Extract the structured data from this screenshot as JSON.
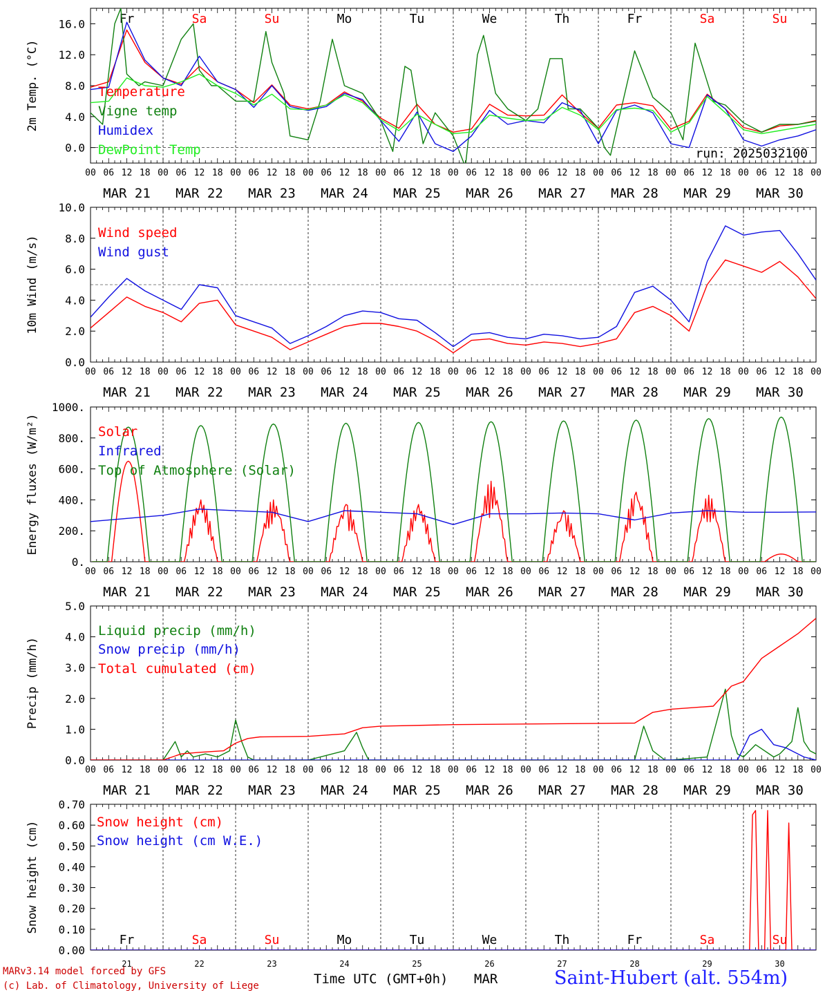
{
  "footer": {
    "credit_line1": "MARv3.14 model forced by GFS",
    "credit_line2": "(c) Lab. of Climatology, University of Liege",
    "xaxis_title": "Time UTC (GMT+0h)",
    "month": "MAR",
    "station": "Saint-Hubert (alt. 554m)"
  },
  "colors": {
    "red": "#ff0000",
    "green": "#108010",
    "blue": "#1010e0",
    "lightgreen": "#22ee22",
    "weekend": "#ff0000",
    "weekday": "#000000"
  },
  "days": {
    "weekday_labels": [
      "Fr",
      "Sa",
      "Su",
      "Mo",
      "Tu",
      "We",
      "Th",
      "Fr",
      "Sa",
      "Su"
    ],
    "weekend": [
      false,
      true,
      true,
      false,
      false,
      false,
      false,
      false,
      true,
      true
    ],
    "date_labels": [
      "MAR 21",
      "MAR 22",
      "MAR 23",
      "MAR 24",
      "MAR 25",
      "MAR 26",
      "MAR 27",
      "MAR 28",
      "MAR 29",
      "MAR 30"
    ],
    "day_numbers": [
      "21",
      "22",
      "23",
      "24",
      "25",
      "26",
      "27",
      "28",
      "29",
      "30"
    ],
    "hour_ticks": [
      "00",
      "06",
      "12",
      "18"
    ],
    "final_tick": "00"
  },
  "chart_data": [
    {
      "type": "line",
      "ylabel": "2m Temp. (°C)",
      "ylim": [
        -2.0,
        18.0
      ],
      "yticks": [
        "0.0",
        "4.0",
        "8.0",
        "12.0",
        "16.0"
      ],
      "yticks_values": [
        0,
        4,
        8,
        12,
        16
      ],
      "ref_line": 0.0,
      "annotation": "run: 2025032100",
      "x_unit": "hours since MAR 21 00 UTC",
      "series": [
        {
          "name": "Temperature",
          "color": "#ff0000",
          "x": [
            0,
            6,
            12,
            18,
            24,
            30,
            36,
            42,
            48,
            54,
            60,
            66,
            72,
            78,
            84,
            90,
            96,
            102,
            108,
            114,
            120,
            126,
            132,
            138,
            144,
            150,
            156,
            162,
            168,
            174,
            180,
            186,
            192,
            198,
            204,
            210,
            216,
            222,
            228,
            234,
            240
          ],
          "y": [
            7.8,
            8.5,
            15.2,
            11.0,
            9.0,
            8.2,
            10.5,
            8.5,
            7.5,
            5.8,
            8.1,
            5.5,
            5.0,
            5.5,
            7.2,
            6.0,
            3.8,
            2.5,
            5.6,
            3.0,
            2.0,
            2.4,
            5.6,
            4.2,
            4.1,
            4.2,
            6.8,
            4.5,
            2.5,
            5.5,
            5.8,
            5.4,
            2.4,
            3.4,
            6.9,
            5.0,
            2.6,
            2.0,
            2.8,
            3.0,
            3.5
          ]
        },
        {
          "name": "Vigne temp",
          "color": "#108010",
          "x": [
            0,
            4,
            8,
            10,
            12,
            16,
            18,
            24,
            30,
            34,
            36,
            40,
            42,
            48,
            54,
            58,
            60,
            64,
            66,
            72,
            76,
            80,
            84,
            90,
            96,
            100,
            104,
            106,
            110,
            114,
            120,
            124,
            128,
            130,
            134,
            138,
            144,
            148,
            152,
            156,
            158,
            162,
            168,
            170,
            172,
            180,
            186,
            192,
            196,
            200,
            206,
            210,
            216,
            222,
            228,
            234,
            240
          ],
          "y": [
            4.5,
            3.0,
            16.0,
            18.0,
            9.5,
            8.0,
            8.5,
            8.0,
            14.0,
            16.0,
            10.0,
            8.0,
            8.0,
            6.0,
            6.0,
            15.0,
            11.0,
            7.0,
            1.5,
            1.0,
            6.0,
            14.0,
            8.0,
            7.0,
            3.5,
            -0.5,
            10.5,
            10.0,
            0.5,
            4.5,
            1.5,
            -2.5,
            12.0,
            14.5,
            7.0,
            5.0,
            3.5,
            5.0,
            11.5,
            11.5,
            5.0,
            5.0,
            2.5,
            0.0,
            -1.0,
            12.5,
            6.5,
            4.5,
            1.0,
            13.5,
            6.0,
            5.5,
            3.2,
            2.0,
            3.0,
            3.0,
            3.4
          ]
        },
        {
          "name": "Humidex",
          "color": "#1010e0",
          "x": [
            0,
            6,
            12,
            18,
            24,
            30,
            36,
            42,
            48,
            54,
            60,
            66,
            72,
            78,
            84,
            90,
            96,
            102,
            108,
            114,
            120,
            126,
            132,
            138,
            144,
            150,
            156,
            162,
            168,
            174,
            180,
            186,
            192,
            198,
            204,
            210,
            216,
            222,
            228,
            234,
            240
          ],
          "y": [
            7.5,
            7.8,
            16.2,
            11.3,
            9.0,
            8.0,
            11.8,
            8.5,
            7.5,
            5.2,
            8.0,
            5.3,
            4.8,
            5.3,
            7.0,
            6.2,
            3.5,
            0.8,
            4.6,
            0.5,
            -0.5,
            1.5,
            4.8,
            3.0,
            3.5,
            3.2,
            5.8,
            4.8,
            0.5,
            4.8,
            5.5,
            4.5,
            0.5,
            0.0,
            6.8,
            5.0,
            1.0,
            0.2,
            1.0,
            1.5,
            2.3
          ]
        },
        {
          "name": "DewPoint Temp",
          "color": "#22ee22",
          "x": [
            0,
            6,
            12,
            18,
            24,
            30,
            36,
            42,
            48,
            54,
            60,
            66,
            72,
            78,
            84,
            90,
            96,
            102,
            108,
            114,
            120,
            126,
            132,
            138,
            144,
            150,
            156,
            162,
            168,
            174,
            180,
            186,
            192,
            198,
            204,
            210,
            216,
            222,
            228,
            234,
            240
          ],
          "y": [
            5.8,
            6.0,
            9.0,
            8.0,
            7.8,
            8.5,
            9.5,
            8.0,
            7.0,
            5.5,
            6.9,
            5.0,
            4.9,
            5.5,
            6.8,
            5.8,
            3.6,
            2.2,
            4.3,
            3.0,
            1.8,
            2.0,
            4.2,
            3.8,
            3.5,
            3.6,
            5.2,
            4.2,
            2.3,
            4.9,
            5.1,
            4.8,
            2.0,
            3.2,
            6.6,
            4.5,
            2.3,
            1.8,
            2.2,
            2.6,
            3.0
          ]
        }
      ]
    },
    {
      "type": "line",
      "ylabel": "10m Wind (m/s)",
      "ylim": [
        0.0,
        10.0
      ],
      "yticks": [
        "0.0",
        "2.0",
        "4.0",
        "6.0",
        "8.0",
        "10.0"
      ],
      "yticks_values": [
        0,
        2,
        4,
        6,
        8,
        10
      ],
      "ref_line": 5.0,
      "series": [
        {
          "name": "Wind speed",
          "color": "#ff0000",
          "x": [
            0,
            6,
            12,
            18,
            24,
            30,
            36,
            42,
            48,
            54,
            60,
            66,
            72,
            78,
            84,
            90,
            96,
            102,
            108,
            114,
            120,
            126,
            132,
            138,
            144,
            150,
            156,
            162,
            168,
            174,
            180,
            186,
            192,
            198,
            204,
            210,
            216,
            222,
            228,
            234,
            240
          ],
          "y": [
            2.2,
            3.2,
            4.2,
            3.6,
            3.2,
            2.6,
            3.8,
            4.0,
            2.4,
            2.0,
            1.6,
            0.8,
            1.3,
            1.8,
            2.3,
            2.5,
            2.5,
            2.3,
            2.0,
            1.4,
            0.6,
            1.4,
            1.5,
            1.2,
            1.1,
            1.3,
            1.2,
            1.0,
            1.2,
            1.5,
            3.2,
            3.6,
            3.0,
            2.0,
            5.0,
            6.6,
            6.2,
            5.8,
            6.5,
            5.5,
            4.1
          ]
        },
        {
          "name": "Wind gust",
          "color": "#1010e0",
          "x": [
            0,
            6,
            12,
            18,
            24,
            30,
            36,
            42,
            48,
            54,
            60,
            66,
            72,
            78,
            84,
            90,
            96,
            102,
            108,
            114,
            120,
            126,
            132,
            138,
            144,
            150,
            156,
            162,
            168,
            174,
            180,
            186,
            192,
            198,
            204,
            210,
            216,
            222,
            228,
            234,
            240
          ],
          "y": [
            2.9,
            4.2,
            5.4,
            4.6,
            4.0,
            3.4,
            5.0,
            4.8,
            3.0,
            2.6,
            2.2,
            1.2,
            1.7,
            2.3,
            3.0,
            3.3,
            3.2,
            2.8,
            2.7,
            1.9,
            1.0,
            1.8,
            1.9,
            1.6,
            1.5,
            1.8,
            1.7,
            1.5,
            1.6,
            2.3,
            4.5,
            4.9,
            4.0,
            2.6,
            6.5,
            8.8,
            8.2,
            8.4,
            8.5,
            7.0,
            5.3
          ]
        }
      ]
    },
    {
      "type": "line",
      "ylabel": "Energy fluxes (W/m²)",
      "ylim": [
        0,
        1000
      ],
      "yticks": [
        "0.",
        "200.",
        "400.",
        "600.",
        "800.",
        "1000."
      ],
      "yticks_values": [
        0,
        200,
        400,
        600,
        800,
        1000
      ],
      "series": [
        {
          "name": "Solar",
          "color": "#ff0000",
          "peaks": [
            {
              "day": 0,
              "value": 650,
              "shape": "smooth"
            },
            {
              "day": 1,
              "value": 400,
              "shape": "ragged"
            },
            {
              "day": 2,
              "value": 400,
              "shape": "ragged"
            },
            {
              "day": 3,
              "value": 370,
              "shape": "ragged"
            },
            {
              "day": 4,
              "value": 370,
              "shape": "ragged"
            },
            {
              "day": 5,
              "value": 520,
              "shape": "ragged"
            },
            {
              "day": 6,
              "value": 330,
              "shape": "ragged"
            },
            {
              "day": 7,
              "value": 450,
              "shape": "ragged"
            },
            {
              "day": 8,
              "value": 430,
              "shape": "ragged"
            },
            {
              "day": 9,
              "value": 50,
              "shape": "smooth"
            }
          ]
        },
        {
          "name": "Infrared",
          "color": "#1010e0",
          "x": [
            0,
            12,
            24,
            36,
            48,
            60,
            72,
            84,
            96,
            108,
            120,
            132,
            144,
            156,
            168,
            180,
            192,
            204,
            216,
            228,
            240
          ],
          "y": [
            260,
            280,
            300,
            340,
            330,
            320,
            260,
            330,
            320,
            310,
            240,
            310,
            310,
            315,
            310,
            270,
            315,
            330,
            320,
            320,
            322
          ]
        },
        {
          "name": "Top of Atmosphere (Solar)",
          "color": "#108010",
          "peaks": [
            {
              "day": 0,
              "value": 870
            },
            {
              "day": 1,
              "value": 880
            },
            {
              "day": 2,
              "value": 890
            },
            {
              "day": 3,
              "value": 895
            },
            {
              "day": 4,
              "value": 900
            },
            {
              "day": 5,
              "value": 905
            },
            {
              "day": 6,
              "value": 910
            },
            {
              "day": 7,
              "value": 915
            },
            {
              "day": 8,
              "value": 925
            },
            {
              "day": 9,
              "value": 935
            }
          ]
        }
      ]
    },
    {
      "type": "line",
      "ylabel": "Precip (mm/h)",
      "ylim": [
        0.0,
        5.0
      ],
      "yticks": [
        "0.0",
        "1.0",
        "2.0",
        "3.0",
        "4.0",
        "5.0"
      ],
      "yticks_values": [
        0,
        1,
        2,
        3,
        4,
        5
      ],
      "series": [
        {
          "name": "Liquid precip (mm/h)",
          "color": "#108010",
          "x": [
            0,
            24,
            28,
            30,
            32,
            34,
            38,
            42,
            46,
            48,
            50,
            52,
            54,
            60,
            72,
            84,
            88,
            90,
            92,
            96,
            108,
            120,
            144,
            168,
            180,
            183,
            186,
            190,
            192,
            204,
            210,
            212,
            214,
            216,
            220,
            226,
            228,
            232,
            234,
            236,
            238,
            240
          ],
          "y": [
            0,
            0,
            0.6,
            0.1,
            0.3,
            0.1,
            0.2,
            0.1,
            0.3,
            1.3,
            0.6,
            0.1,
            0,
            0,
            0,
            0.3,
            0.9,
            0.4,
            0,
            0,
            0,
            0,
            0,
            0,
            0,
            1.1,
            0.3,
            0,
            0,
            0.1,
            2.3,
            0.8,
            0.2,
            0.1,
            0.5,
            0.1,
            0.2,
            0.6,
            1.7,
            0.6,
            0.3,
            0.2
          ]
        },
        {
          "name": "Snow precip (mm/h)",
          "color": "#1010e0",
          "x": [
            0,
            214,
            218,
            222,
            226,
            230,
            232,
            236,
            240
          ],
          "y": [
            0,
            0,
            0.8,
            1.0,
            0.5,
            0.4,
            0.3,
            0.1,
            0
          ]
        },
        {
          "name": "Total cumulated (cm)",
          "color": "#ff0000",
          "x": [
            0,
            24,
            30,
            36,
            44,
            48,
            52,
            56,
            72,
            84,
            90,
            96,
            120,
            144,
            168,
            180,
            186,
            192,
            206,
            212,
            216,
            222,
            228,
            234,
            240
          ],
          "y": [
            0,
            0,
            0.2,
            0.25,
            0.3,
            0.55,
            0.7,
            0.75,
            0.77,
            0.85,
            1.05,
            1.1,
            1.15,
            1.17,
            1.19,
            1.2,
            1.55,
            1.65,
            1.75,
            2.4,
            2.55,
            3.3,
            3.7,
            4.1,
            4.6
          ]
        }
      ]
    },
    {
      "type": "line",
      "ylabel": "Snow height (cm)",
      "ylim": [
        0.0,
        0.7
      ],
      "yticks": [
        "0.00",
        "0.10",
        "0.20",
        "0.30",
        "0.40",
        "0.50",
        "0.60",
        "0.70"
      ],
      "yticks_values": [
        0,
        0.1,
        0.2,
        0.3,
        0.4,
        0.5,
        0.6,
        0.7
      ],
      "series": [
        {
          "name": "Snow height (cm)",
          "color": "#ff0000",
          "x": [
            0,
            218,
            219,
            220,
            221,
            222,
            223,
            224,
            225,
            226,
            227,
            230,
            231,
            232,
            233,
            240
          ],
          "y": [
            0,
            0,
            0.65,
            0.67,
            0,
            0,
            0,
            0.67,
            0,
            0,
            0,
            0,
            0.61,
            0,
            0,
            0
          ]
        },
        {
          "name": "Snow height (cm W.E.)",
          "color": "#1010e0",
          "x": [
            0,
            240
          ],
          "y": [
            0,
            0
          ]
        }
      ]
    }
  ]
}
